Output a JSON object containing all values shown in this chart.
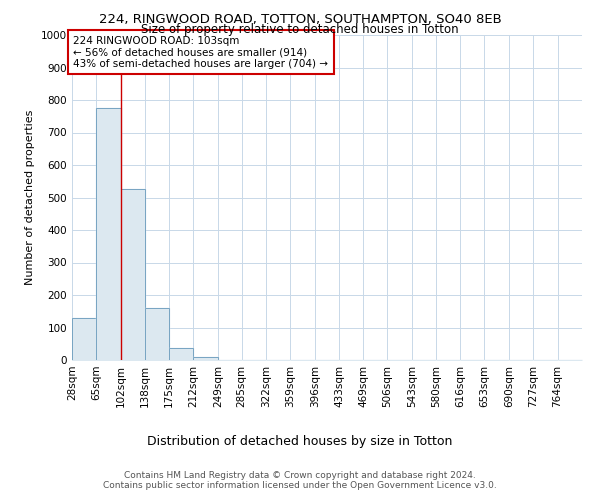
{
  "title": "224, RINGWOOD ROAD, TOTTON, SOUTHAMPTON, SO40 8EB",
  "subtitle": "Size of property relative to detached houses in Totton",
  "xlabel": "Distribution of detached houses by size in Totton",
  "ylabel": "Number of detached properties",
  "tick_labels": [
    "28sqm",
    "65sqm",
    "102sqm",
    "138sqm",
    "175sqm",
    "212sqm",
    "249sqm",
    "285sqm",
    "322sqm",
    "359sqm",
    "396sqm",
    "433sqm",
    "469sqm",
    "506sqm",
    "543sqm",
    "580sqm",
    "616sqm",
    "653sqm",
    "690sqm",
    "727sqm",
    "764sqm"
  ],
  "bin_edges": [
    28,
    65,
    102,
    138,
    175,
    212,
    249,
    285,
    322,
    359,
    396,
    433,
    469,
    506,
    543,
    580,
    616,
    653,
    690,
    727,
    764,
    801
  ],
  "bar_heights": [
    130,
    775,
    525,
    160,
    37,
    10,
    0,
    0,
    0,
    0,
    0,
    0,
    0,
    0,
    0,
    0,
    0,
    0,
    0,
    0,
    0
  ],
  "bar_color": "#dce8f0",
  "bar_edge_color": "#6699bb",
  "property_line_x": 103,
  "property_line_color": "#cc0000",
  "annotation_text": "224 RINGWOOD ROAD: 103sqm\n← 56% of detached houses are smaller (914)\n43% of semi-detached houses are larger (704) →",
  "annotation_box_color": "#cc0000",
  "annotation_text_color": "#000000",
  "ylim": [
    0,
    1000
  ],
  "yticks": [
    0,
    100,
    200,
    300,
    400,
    500,
    600,
    700,
    800,
    900,
    1000
  ],
  "grid_color": "#c8d8e8",
  "background_color": "#ffffff",
  "footer_line1": "Contains HM Land Registry data © Crown copyright and database right 2024.",
  "footer_line2": "Contains public sector information licensed under the Open Government Licence v3.0.",
  "title_fontsize": 9.5,
  "subtitle_fontsize": 8.5,
  "xlabel_fontsize": 9,
  "ylabel_fontsize": 8,
  "tick_fontsize": 7.5,
  "footer_fontsize": 6.5,
  "ann_fontsize": 7.5
}
